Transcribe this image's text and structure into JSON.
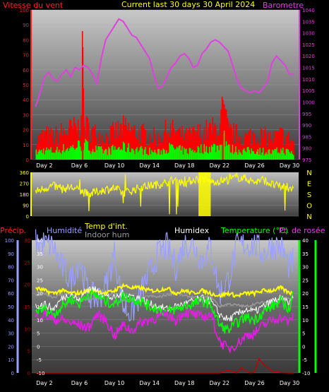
{
  "header": {
    "wind_label": "Vitesse du vent",
    "title": "Current last 30 days 30 April 2024",
    "baro_label": "Barometre"
  },
  "colors": {
    "wind_label": "#ff2020",
    "title": "#ffff00",
    "baro": "#e040e0",
    "gust": "#ff0000",
    "wind": "#00ff00",
    "winddir": "#ffff00",
    "humidity": "#9aa0ff",
    "temp_int": "#ffff00",
    "indoor_hum": "#9a9a9a",
    "humidex": "#ffffff",
    "temperature": "#00ff00",
    "dewpoint": "#e020e0",
    "rain": "#c00000",
    "axis_left": "#9aa0ff",
    "axis_right": "#00ff00"
  },
  "chart_data": [
    {
      "type": "line",
      "id": "wind_baro",
      "xlabels": [
        "Day 2",
        "Day 6",
        "Day 10",
        "Day 14",
        "Day 18",
        "Day 22",
        "Day 26",
        "Day 30"
      ],
      "left_axis": {
        "label": "Vitesse du vent",
        "ylim": [
          0,
          100
        ],
        "ticks": [
          0,
          10,
          20,
          30,
          40,
          50,
          60,
          70,
          80,
          90,
          100
        ]
      },
      "right_axis": {
        "label": "Barometre",
        "ylim": [
          975,
          1040
        ],
        "ticks": [
          975,
          980,
          985,
          990,
          995,
          1000,
          1005,
          1010,
          1015,
          1020,
          1025,
          1030,
          1035,
          1040
        ]
      },
      "series": [
        {
          "name": "Barometre",
          "axis": "right",
          "x": [
            1,
            1.5,
            2,
            2.5,
            3,
            3.5,
            4,
            4.5,
            5,
            5.5,
            6,
            6.5,
            7,
            7.5,
            8,
            8.5,
            9,
            9.5,
            10,
            10.5,
            11,
            11.5,
            12,
            12.5,
            13,
            13.5,
            14,
            14.5,
            15,
            15.5,
            16,
            16.5,
            17,
            17.5,
            18,
            18.5,
            19,
            19.5,
            20,
            20.5,
            21,
            21.5,
            22,
            22.5,
            23,
            23.5,
            24,
            24.5,
            25,
            25.5,
            26,
            26.5,
            27,
            27.5,
            28,
            28.5,
            29,
            29.5,
            30,
            30.5
          ],
          "y": [
            998,
            1004,
            1011,
            1013,
            1010,
            1009,
            1012,
            1014,
            1011,
            1015,
            1014,
            1016,
            1015,
            1012,
            1008,
            1019,
            1027,
            1030,
            1033,
            1036,
            1035,
            1032,
            1029,
            1028,
            1025,
            1022,
            1019,
            1012,
            1006,
            1007,
            1011,
            1015,
            1017,
            1020,
            1021,
            1019,
            1015,
            1016,
            1021,
            1023,
            1026,
            1027,
            1026,
            1024,
            1022,
            1016,
            1010,
            1006,
            1005,
            1004,
            1005,
            1004,
            1006,
            1009,
            1017,
            1020,
            1018,
            1016,
            1012,
            1012
          ]
        },
        {
          "name": "gust",
          "axis": "left",
          "x": [
            1,
            2,
            3,
            4,
            5,
            6,
            6.3,
            6.5,
            7,
            8,
            9,
            10,
            11,
            12,
            13,
            14,
            15,
            16,
            17,
            18,
            19,
            20,
            21,
            22,
            22.3,
            23,
            24,
            25,
            26,
            27,
            28,
            29,
            30,
            30.5
          ],
          "y": [
            15,
            20,
            18,
            22,
            24,
            26,
            75,
            28,
            24,
            20,
            18,
            22,
            25,
            23,
            21,
            19,
            17,
            24,
            22,
            18,
            20,
            22,
            24,
            26,
            40,
            22,
            20,
            18,
            21,
            19,
            17,
            20,
            16,
            14
          ]
        },
        {
          "name": "wind",
          "axis": "left",
          "x": [
            1,
            2,
            3,
            4,
            5,
            6,
            6.5,
            7,
            8,
            9,
            10,
            11,
            12,
            13,
            14,
            15,
            16,
            17,
            18,
            19,
            20,
            21,
            22,
            22.3,
            23,
            24,
            25,
            26,
            27,
            28,
            29,
            30,
            30.5
          ],
          "y": [
            6,
            8,
            7,
            9,
            10,
            12,
            13,
            10,
            8,
            7,
            9,
            10,
            9,
            8,
            7,
            6,
            10,
            9,
            7,
            8,
            9,
            10,
            11,
            25,
            9,
            8,
            7,
            8,
            7,
            6,
            8,
            6,
            5
          ]
        }
      ]
    },
    {
      "type": "line",
      "id": "wind_direction",
      "xlabels": [],
      "left_axis": {
        "ylim": [
          0,
          360
        ],
        "ticks": [
          0,
          90,
          180,
          270,
          360
        ]
      },
      "right_labels": [
        "N",
        "O",
        "S",
        "E",
        "N"
      ],
      "series": [
        {
          "name": "",
          "axis": "left",
          "x": [
            1,
            2,
            3,
            4,
            5,
            6,
            7,
            8,
            9,
            10,
            11,
            12,
            13,
            14,
            15,
            16,
            17,
            18,
            19,
            20,
            21,
            22,
            23,
            24,
            25,
            26,
            27,
            28,
            29,
            30,
            30.5
          ],
          "y": [
            200,
            230,
            250,
            220,
            240,
            210,
            180,
            200,
            220,
            230,
            190,
            210,
            240,
            250,
            260,
            280,
            300,
            270,
            300,
            310,
            280,
            290,
            300,
            320,
            310,
            280,
            300,
            260,
            240,
            250,
            200
          ]
        }
      ]
    },
    {
      "type": "line",
      "id": "temp_hum",
      "legend": {
        "precip": "Précip.",
        "humidity": "Humidité",
        "temp_int": "Temp d'int.",
        "indoor_hum": "Indoor hum",
        "humidex": "Humidex",
        "temperature": "Temperature (°C)",
        "dewpoint": "Pt. de rosée"
      },
      "xlabels": [
        "Day 2",
        "Day 6",
        "Day 10",
        "Day 14",
        "Day 18",
        "Day 22",
        "Day 26",
        "Day 30"
      ],
      "far_left_axis": {
        "ylim": [
          0,
          100
        ],
        "ticks": [
          0,
          10,
          20,
          30,
          40,
          50,
          60,
          70,
          80,
          90,
          100
        ]
      },
      "left_axis": {
        "ylim": [
          0,
          30
        ],
        "ticks": [
          0,
          5,
          10,
          15,
          20,
          25,
          30
        ]
      },
      "right_axis": {
        "ylim": [
          -10,
          40
        ],
        "ticks": [
          -10,
          -5,
          0,
          5,
          10,
          15,
          20,
          25,
          30,
          35,
          40
        ]
      },
      "series": [
        {
          "name": "Humidité",
          "axis": "far_left",
          "x": [
            1,
            2,
            3,
            4,
            5,
            6,
            7,
            8,
            9,
            10,
            11,
            12,
            13,
            14,
            15,
            16,
            17,
            18,
            19,
            20,
            21,
            22,
            23,
            24,
            25,
            26,
            27,
            28,
            29,
            30,
            30.5
          ],
          "y": [
            98,
            97,
            95,
            80,
            70,
            85,
            60,
            55,
            65,
            90,
            50,
            45,
            60,
            75,
            90,
            95,
            80,
            97,
            96,
            85,
            95,
            60,
            70,
            95,
            97,
            96,
            90,
            96,
            95,
            80,
            85
          ]
        },
        {
          "name": "Temp d'int.",
          "axis": "right",
          "x": [
            1,
            2,
            3,
            4,
            5,
            6,
            7,
            8,
            9,
            10,
            11,
            12,
            13,
            14,
            15,
            16,
            17,
            18,
            19,
            20,
            21,
            22,
            23,
            24,
            25,
            26,
            27,
            28,
            29,
            30,
            30.5
          ],
          "y": [
            22,
            21,
            20,
            21,
            20,
            20,
            21,
            21,
            20,
            21,
            23,
            22,
            22,
            21,
            21,
            22,
            20,
            21,
            20,
            21,
            20,
            19,
            20,
            19,
            20,
            20,
            21,
            21,
            22,
            20,
            21
          ]
        },
        {
          "name": "Indoor hum",
          "axis": "far_left",
          "x": [
            1,
            2,
            3,
            4,
            5,
            6,
            7,
            8,
            9,
            10,
            11,
            12,
            13,
            14,
            15,
            16,
            17,
            18,
            19,
            20,
            21,
            22,
            23,
            24,
            25,
            26,
            27,
            28,
            29,
            30,
            30.5
          ],
          "y": [
            58,
            60,
            57,
            59,
            60,
            56,
            55,
            57,
            58,
            60,
            55,
            54,
            56,
            58,
            57,
            59,
            60,
            58,
            57,
            56,
            58,
            50,
            52,
            51,
            50,
            52,
            53,
            54,
            55,
            56,
            57
          ]
        },
        {
          "name": "Humidex",
          "axis": "right",
          "x": [
            1,
            2,
            3,
            4,
            5,
            6,
            7,
            8,
            9,
            10,
            11,
            12,
            13,
            14,
            15,
            16,
            17,
            18,
            19,
            20,
            21,
            22,
            23,
            24,
            25,
            26,
            27,
            28,
            29,
            30,
            30.5
          ],
          "y": [
            15,
            16,
            14,
            18,
            20,
            17,
            22,
            21,
            19,
            18,
            20,
            19,
            18,
            16,
            15,
            14,
            15,
            16,
            17,
            18,
            17,
            12,
            10,
            12,
            14,
            13,
            15,
            17,
            18,
            16,
            20
          ]
        },
        {
          "name": "Temperature (°C)",
          "axis": "right",
          "x": [
            1,
            2,
            3,
            4,
            5,
            6,
            7,
            8,
            9,
            10,
            11,
            12,
            13,
            14,
            15,
            16,
            17,
            18,
            19,
            20,
            21,
            22,
            23,
            24,
            25,
            26,
            27,
            28,
            29,
            30,
            30.5
          ],
          "y": [
            13,
            14,
            12,
            15,
            18,
            16,
            20,
            19,
            17,
            16,
            19,
            18,
            17,
            15,
            14,
            13,
            14,
            15,
            16,
            17,
            16,
            8,
            6,
            9,
            11,
            10,
            13,
            15,
            17,
            14,
            22
          ]
        },
        {
          "name": "Pt. de rosée",
          "axis": "right",
          "x": [
            1,
            2,
            3,
            4,
            5,
            6,
            7,
            8,
            9,
            10,
            11,
            12,
            13,
            14,
            15,
            16,
            17,
            18,
            19,
            20,
            21,
            22,
            23,
            24,
            25,
            26,
            27,
            28,
            29,
            30,
            30.5
          ],
          "y": [
            11,
            12,
            10,
            10,
            9,
            8,
            7,
            12,
            10,
            4,
            8,
            6,
            9,
            10,
            11,
            12,
            10,
            13,
            12,
            11,
            12,
            2,
            -1,
            1,
            4,
            5,
            8,
            10,
            11,
            9,
            12
          ]
        },
        {
          "name": "Précip.",
          "axis": "left",
          "x": [
            1,
            5,
            10,
            15,
            20,
            21,
            22,
            22.5,
            23,
            24,
            24.5,
            25,
            25.5,
            26,
            26.5,
            27,
            28,
            29,
            30,
            30.5
          ],
          "y": [
            0,
            0,
            0,
            0,
            0,
            0,
            0,
            0.3,
            0.6,
            0,
            1.2,
            0.5,
            0,
            0.2,
            3.2,
            2.0,
            0.4,
            0.1,
            0,
            0
          ]
        }
      ]
    }
  ]
}
